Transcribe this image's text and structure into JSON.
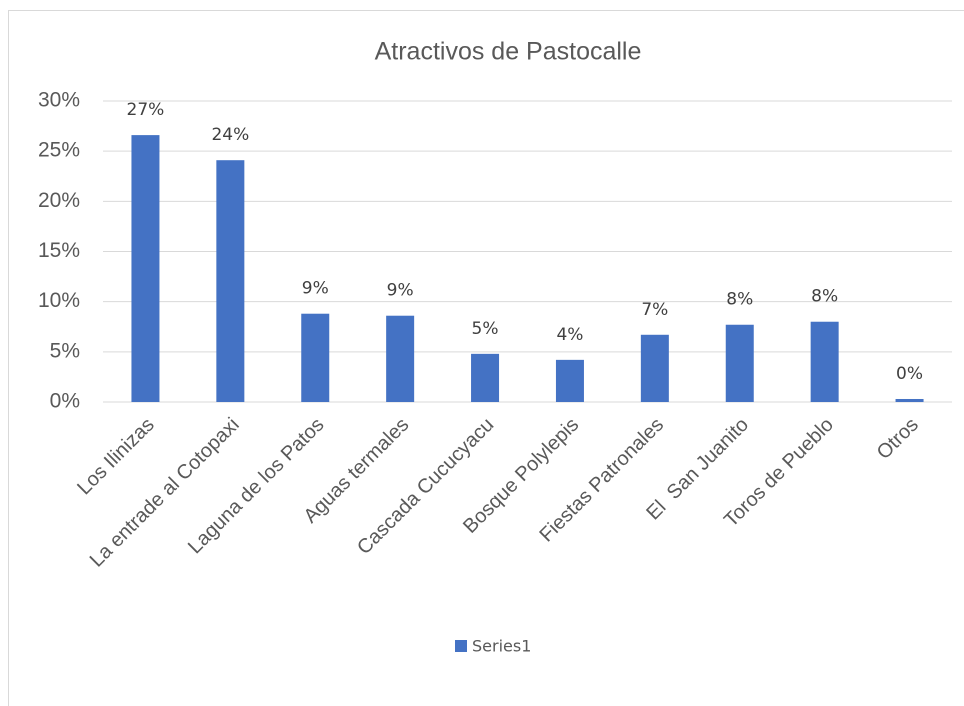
{
  "chart_data": {
    "type": "bar",
    "title": "Atractivos de Pastocalle",
    "categories": [
      "Los Ilinizas",
      "La entrade al Cotopaxi",
      "Laguna de los Patos",
      "Aguas termales",
      "Cascada Cucucyacu",
      "Bosque Polylepis",
      "Fiestas Patronales",
      "El  San Juanito",
      "Toros de Pueblo",
      "Otros"
    ],
    "series": [
      {
        "name": "Series1",
        "color": "#4472c4",
        "values": [
          26.6,
          24.1,
          8.8,
          8.6,
          4.8,
          4.2,
          6.7,
          7.7,
          8.0,
          0.3
        ],
        "value_labels": [
          "27%",
          "24%",
          "9%",
          "9%",
          "5%",
          "4%",
          "7%",
          "8%",
          "8%",
          "0%"
        ]
      }
    ],
    "ylim": [
      0,
      30
    ],
    "yticks": [
      {
        "value": 0,
        "label": "0%"
      },
      {
        "value": 5,
        "label": "5%"
      },
      {
        "value": 10,
        "label": "10%"
      },
      {
        "value": 15,
        "label": "15%"
      },
      {
        "value": 20,
        "label": "20%"
      },
      {
        "value": 25,
        "label": "25%"
      },
      {
        "value": 30,
        "label": "30%"
      }
    ],
    "grid": true,
    "legend": "bottom"
  }
}
